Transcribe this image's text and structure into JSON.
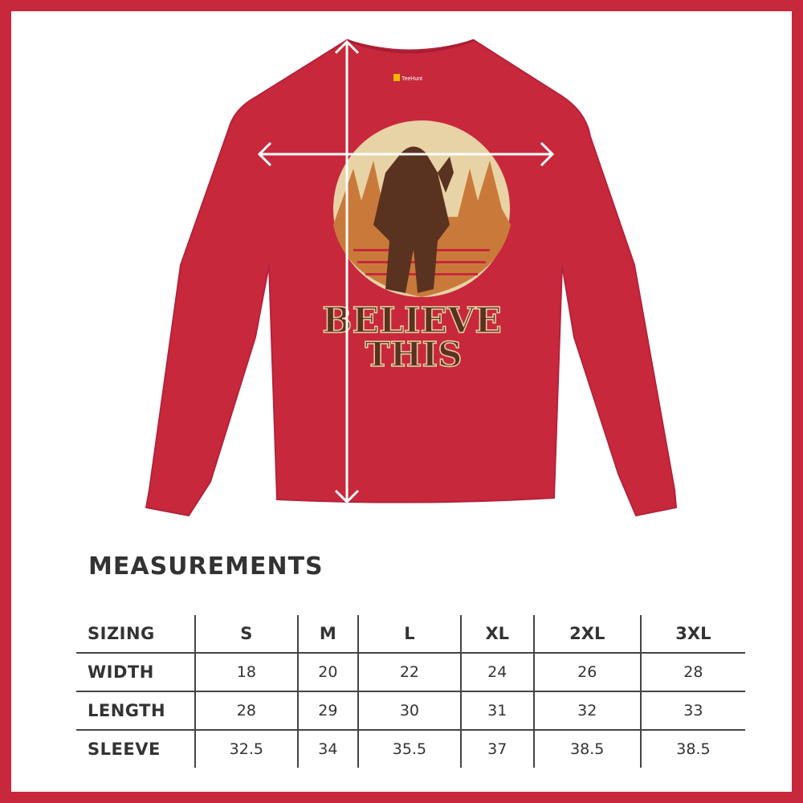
{
  "colors": {
    "border": "#c8283c",
    "shirt": "#c8283c",
    "text": "#333333"
  },
  "shirt": {
    "print_line1": "BELIEVE",
    "print_line2": "THIS",
    "label_brand": "TeeHunt"
  },
  "measurements": {
    "title": "MEASUREMENTS",
    "headers": [
      "SIZING",
      "S",
      "M",
      "L",
      "XL",
      "2XL",
      "3XL"
    ],
    "rows": [
      {
        "label": "WIDTH",
        "values": [
          "18",
          "20",
          "22",
          "24",
          "26",
          "28"
        ]
      },
      {
        "label": "LENGTH",
        "values": [
          "28",
          "29",
          "30",
          "31",
          "32",
          "33"
        ]
      },
      {
        "label": "SLEEVE",
        "values": [
          "32.5",
          "34",
          "35.5",
          "37",
          "38.5",
          "38.5"
        ]
      }
    ]
  }
}
